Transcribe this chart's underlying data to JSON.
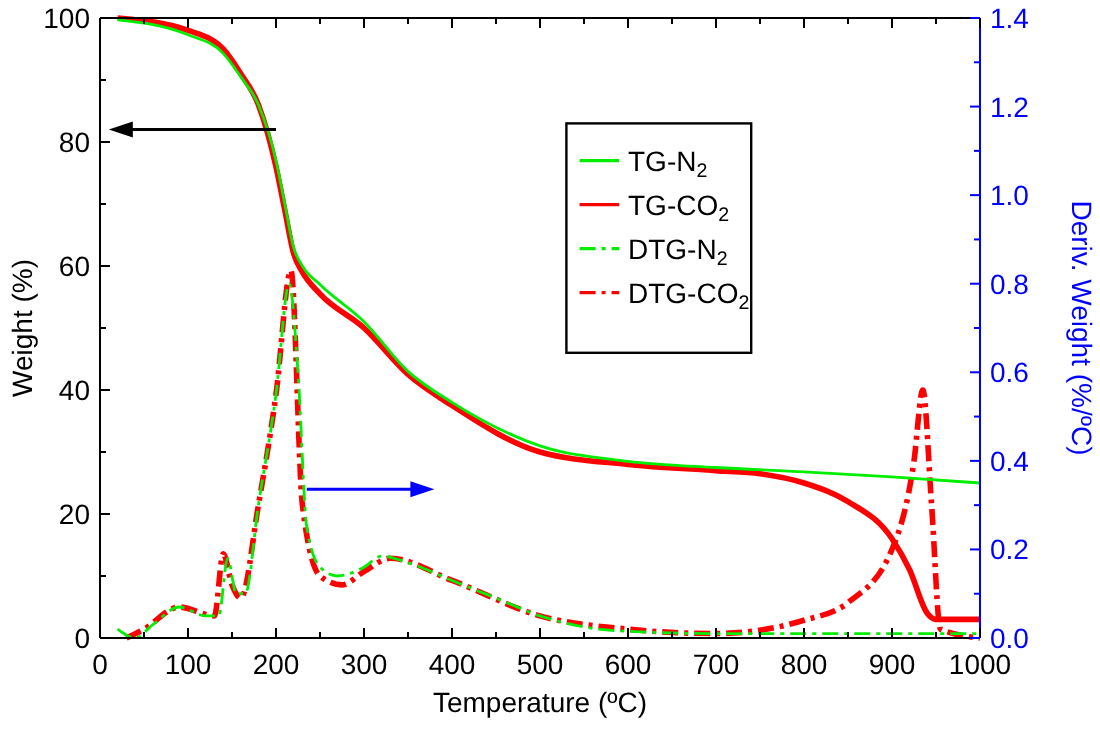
{
  "chart_data": {
    "type": "line",
    "xlabel": "Temperature (ºC)",
    "ylabel": "Weight (%)",
    "y2label": "Deriv. Weight (%/ºC)",
    "xlim": [
      0,
      1000
    ],
    "xticks": [
      0,
      100,
      200,
      300,
      400,
      500,
      600,
      700,
      800,
      900,
      1000
    ],
    "ylim": [
      0,
      100
    ],
    "yticks": [
      0,
      20,
      40,
      60,
      80,
      100
    ],
    "y2lim": [
      0,
      1.4
    ],
    "y2ticks": [
      {
        "value": 0,
        "label": "0.0"
      },
      0.2,
      0.4,
      0.6,
      0.8,
      {
        "value": 1,
        "label": "1.0"
      },
      1.2,
      1.4
    ],
    "legend": "top right",
    "grid": false,
    "series": [
      {
        "name": "TG-N$_{2}$",
        "color": "#00ee00",
        "line_style": "solid",
        "x": [
          20,
          100,
          140,
          160,
          180,
          200,
          210,
          220,
          230,
          250,
          300,
          350,
          400,
          500,
          600,
          700,
          800,
          900,
          1000
        ],
        "values": [
          99.7,
          97.3,
          94.3,
          90.5,
          86,
          77,
          70,
          63,
          60,
          57,
          51,
          43,
          38,
          31,
          28.5,
          27.5,
          26.8,
          26,
          25
        ]
      },
      {
        "name": "TG-CO$_{2}$",
        "color": "#ff0000",
        "line_style": "solid",
        "x": [
          20,
          100,
          140,
          160,
          180,
          200,
          210,
          220,
          230,
          250,
          300,
          350,
          400,
          500,
          600,
          700,
          750,
          800,
          850,
          900,
          920,
          940,
          950,
          1000
        ],
        "values": [
          100,
          98,
          95,
          91,
          86,
          76,
          69,
          62,
          59,
          55.5,
          50,
          42.5,
          37.5,
          30,
          28,
          27,
          26.5,
          25,
          22,
          16,
          11,
          4,
          3,
          3
        ]
      },
      {
        "name": "DTG-N$_{2}$",
        "color": "#00ee00",
        "line_style": "dashdot",
        "axis": "y2",
        "x": [
          20,
          40,
          60,
          90,
          120,
          135,
          145,
          155,
          165,
          180,
          200,
          215,
          225,
          235,
          250,
          270,
          300,
          320,
          350,
          400,
          450,
          500,
          550,
          600,
          700,
          800,
          900,
          1000
        ],
        "values": [
          0.02,
          0,
          0.03,
          0.07,
          0.05,
          0.05,
          0.18,
          0.1,
          0.1,
          0.3,
          0.55,
          0.8,
          0.6,
          0.25,
          0.16,
          0.14,
          0.16,
          0.185,
          0.17,
          0.13,
          0.09,
          0.05,
          0.025,
          0.015,
          0.01,
          0.01,
          0.01,
          0.01
        ]
      },
      {
        "name": "DTG-CO$_{2}$",
        "color": "#ff0000",
        "line_style": "dashdot",
        "axis": "y2",
        "x": [
          30,
          50,
          90,
          130,
          140,
          150,
          160,
          180,
          200,
          217,
          230,
          250,
          275,
          300,
          330,
          400,
          500,
          600,
          700,
          800,
          850,
          900,
          925,
          935,
          945,
          955,
          1000
        ],
        "values": [
          0,
          0.02,
          0.07,
          0.05,
          0.19,
          0.12,
          0.09,
          0.3,
          0.55,
          0.83,
          0.3,
          0.14,
          0.12,
          0.15,
          0.18,
          0.13,
          0.05,
          0.02,
          0.01,
          0.04,
          0.08,
          0.2,
          0.4,
          0.56,
          0.3,
          0.02,
          0
        ]
      }
    ]
  }
}
